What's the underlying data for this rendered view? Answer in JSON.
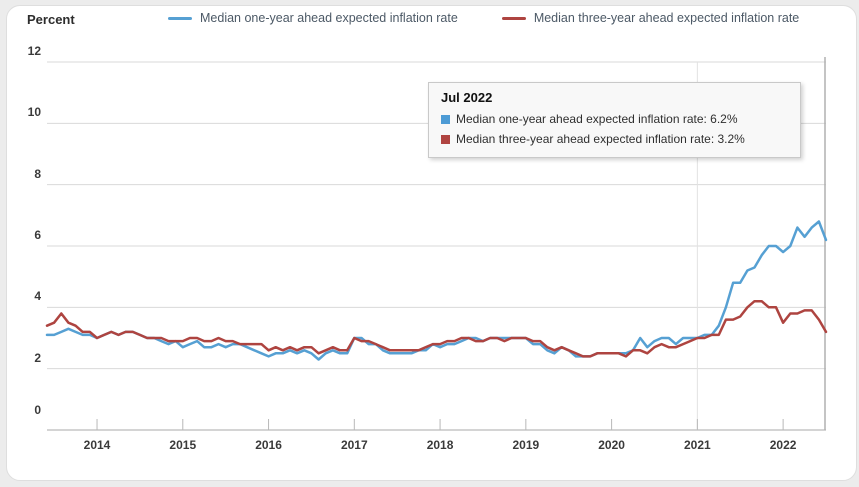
{
  "y_axis_title": "Percent",
  "legend": {
    "items": [
      {
        "label": "Median one-year ahead expected inflation rate",
        "color": "#56a0d3"
      },
      {
        "label": "Median three-year ahead expected inflation rate",
        "color": "#ae4440"
      }
    ]
  },
  "tooltip": {
    "title": "Jul 2022",
    "rows": [
      {
        "text": "Median one-year ahead expected inflation rate: 6.2%",
        "color": "#4d9bd5"
      },
      {
        "text": "Median three-year ahead expected inflation rate: 3.2%",
        "color": "#b04441"
      }
    ]
  },
  "chart_data": {
    "type": "line",
    "title": "",
    "ylabel": "Percent",
    "xlabel": "",
    "ylim": [
      0,
      12
    ],
    "y_ticks": [
      0,
      2,
      4,
      6,
      8,
      10,
      12
    ],
    "grid": "horizontal",
    "legend_position": "top",
    "x_range": {
      "start": "Jun 2013",
      "end": "Jul 2022",
      "frequency": "monthly"
    },
    "x_ticks": [
      {
        "label": "2014",
        "month_index": 7
      },
      {
        "label": "2015",
        "month_index": 19
      },
      {
        "label": "2016",
        "month_index": 31
      },
      {
        "label": "2017",
        "month_index": 43
      },
      {
        "label": "2018",
        "month_index": 55
      },
      {
        "label": "2019",
        "month_index": 67
      },
      {
        "label": "2020",
        "month_index": 79
      },
      {
        "label": "2021",
        "month_index": 91
      },
      {
        "label": "2022",
        "month_index": 103
      }
    ],
    "plot_line_month_index": 91,
    "crosshair": {
      "month_index": 109,
      "label": "Jul 2022"
    },
    "highlighted_point": {
      "x": "Jul 2022",
      "one_year": 6.2,
      "three_year": 3.2
    },
    "series": [
      {
        "name": "Median one-year ahead expected inflation rate",
        "color": "#56a0d3",
        "values": [
          3.1,
          3.1,
          3.2,
          3.3,
          3.2,
          3.1,
          3.1,
          3.0,
          3.1,
          3.2,
          3.1,
          3.2,
          3.2,
          3.1,
          3.0,
          3.0,
          2.9,
          2.8,
          2.9,
          2.7,
          2.8,
          2.9,
          2.7,
          2.7,
          2.8,
          2.7,
          2.8,
          2.8,
          2.7,
          2.6,
          2.5,
          2.4,
          2.5,
          2.5,
          2.6,
          2.5,
          2.6,
          2.5,
          2.3,
          2.5,
          2.6,
          2.5,
          2.5,
          3.0,
          3.0,
          2.8,
          2.8,
          2.6,
          2.5,
          2.5,
          2.5,
          2.5,
          2.6,
          2.6,
          2.8,
          2.7,
          2.8,
          2.8,
          2.9,
          3.0,
          3.0,
          2.9,
          3.0,
          3.0,
          3.0,
          3.0,
          3.0,
          3.0,
          2.8,
          2.8,
          2.6,
          2.5,
          2.7,
          2.6,
          2.4,
          2.4,
          2.4,
          2.5,
          2.5,
          2.5,
          2.5,
          2.5,
          2.6,
          3.0,
          2.7,
          2.9,
          3.0,
          3.0,
          2.8,
          3.0,
          3.0,
          3.0,
          3.1,
          3.1,
          3.4,
          4.0,
          4.8,
          4.8,
          5.2,
          5.3,
          5.7,
          6.0,
          6.0,
          5.8,
          6.0,
          6.6,
          6.3,
          6.6,
          6.8,
          6.2
        ]
      },
      {
        "name": "Median three-year ahead expected inflation rate",
        "color": "#ae4440",
        "values": [
          3.4,
          3.5,
          3.8,
          3.5,
          3.4,
          3.2,
          3.2,
          3.0,
          3.1,
          3.2,
          3.1,
          3.2,
          3.2,
          3.1,
          3.0,
          3.0,
          3.0,
          2.9,
          2.9,
          2.9,
          3.0,
          3.0,
          2.9,
          2.9,
          3.0,
          2.9,
          2.9,
          2.8,
          2.8,
          2.8,
          2.8,
          2.6,
          2.7,
          2.6,
          2.7,
          2.6,
          2.7,
          2.7,
          2.5,
          2.6,
          2.7,
          2.6,
          2.6,
          3.0,
          2.9,
          2.9,
          2.8,
          2.7,
          2.6,
          2.6,
          2.6,
          2.6,
          2.6,
          2.7,
          2.8,
          2.8,
          2.9,
          2.9,
          3.0,
          3.0,
          2.9,
          2.9,
          3.0,
          3.0,
          2.9,
          3.0,
          3.0,
          3.0,
          2.9,
          2.9,
          2.7,
          2.6,
          2.7,
          2.6,
          2.5,
          2.4,
          2.4,
          2.5,
          2.5,
          2.5,
          2.5,
          2.4,
          2.6,
          2.6,
          2.5,
          2.7,
          2.8,
          2.7,
          2.7,
          2.8,
          2.9,
          3.0,
          3.0,
          3.1,
          3.1,
          3.6,
          3.6,
          3.7,
          4.0,
          4.2,
          4.2,
          4.0,
          4.0,
          3.5,
          3.8,
          3.8,
          3.9,
          3.9,
          3.6,
          3.2
        ]
      }
    ],
    "colors": {
      "grid_line": "#d9d9d9",
      "axis_line": "#a8a8a8",
      "tick_mark": "#b8b8b8",
      "plot_line": "#e2e2e2",
      "crosshair": "#b0b0b0"
    }
  }
}
